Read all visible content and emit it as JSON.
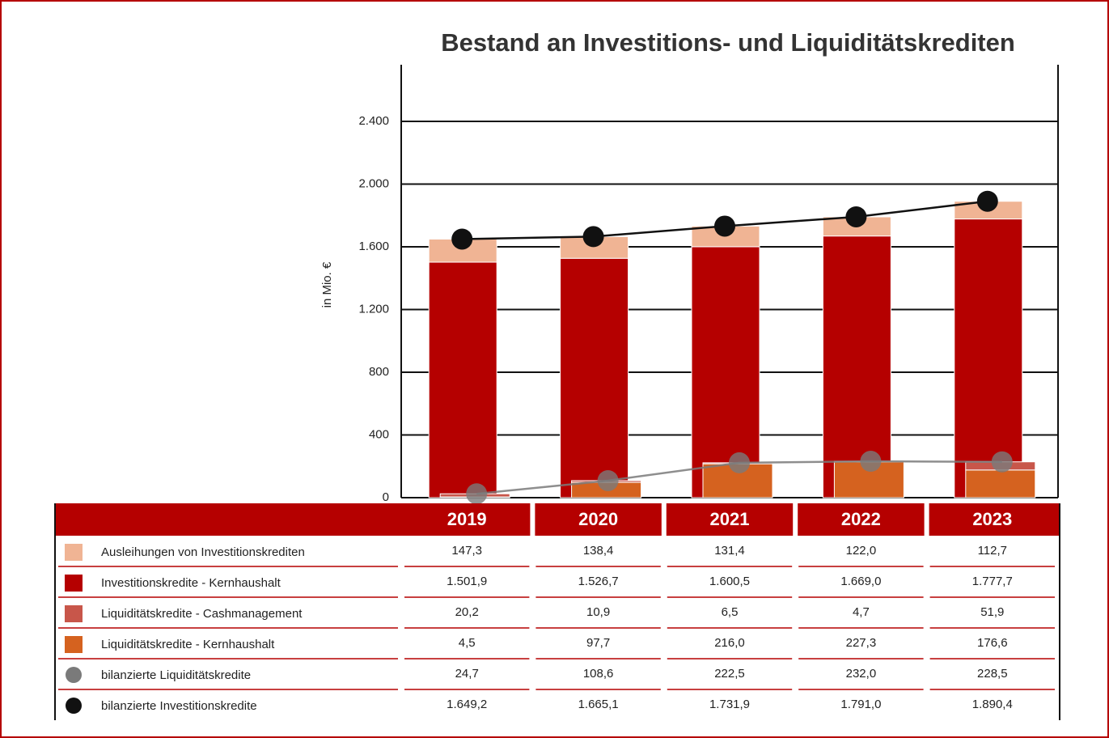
{
  "chart_data": {
    "type": "bar",
    "title": "Bestand an Investitions- und Liquiditätskrediten",
    "y_label": "in Mio. €",
    "categories": [
      "2019",
      "2020",
      "2021",
      "2022",
      "2023"
    ],
    "ylim": [
      0,
      2800
    ],
    "yticks": [
      0,
      400,
      800,
      {
        "value": 1200,
        "label": "1.200"
      },
      {
        "value": 1600,
        "label": "1.600"
      },
      {
        "value": 2000,
        "label": "2.000"
      },
      {
        "value": 2400,
        "label": "2.400"
      }
    ],
    "grid": true,
    "series": [
      {
        "name": "Ausleihungen von Investitionskrediten",
        "color": "#f0b494",
        "type": "bar",
        "stack": "invest",
        "values": [
          147.3,
          138.4,
          131.4,
          122.0,
          112.7
        ],
        "value_labels": [
          "147,3",
          "138,4",
          "131,4",
          "122,0",
          "112,7"
        ]
      },
      {
        "name": "Investitionskredite - Kernhaushalt",
        "color": "#b50000",
        "type": "bar",
        "stack": "invest",
        "values": [
          1501.9,
          1526.7,
          1600.5,
          1669.0,
          1777.7
        ],
        "value_labels": [
          "1.501,9",
          "1.526,7",
          "1.600,5",
          "1.669,0",
          "1.777,7"
        ]
      },
      {
        "name": "Liquiditätskredite - Cashmanagement",
        "color": "#c8564a",
        "type": "bar",
        "stack": "liquid",
        "values": [
          20.2,
          10.9,
          6.5,
          4.7,
          51.9
        ],
        "value_labels": [
          "20,2",
          "10,9",
          "6,5",
          "4,7",
          "51,9"
        ]
      },
      {
        "name": "Liquiditätskredite - Kernhaushalt",
        "color": "#d5621f",
        "type": "bar",
        "stack": "liquid",
        "values": [
          4.5,
          97.7,
          216.0,
          227.3,
          176.6
        ],
        "value_labels": [
          "4,5",
          "97,7",
          "216,0",
          "227,3",
          "176,6"
        ]
      },
      {
        "name": "bilanzierte Liquiditätskredite",
        "color": "#7a7a7a",
        "type": "line",
        "values": [
          24.7,
          108.6,
          222.5,
          232.0,
          228.5
        ],
        "value_labels": [
          "24,7",
          "108,6",
          "222,5",
          "232,0",
          "228,5"
        ]
      },
      {
        "name": "bilanzierte Investitionskredite",
        "color": "#111111",
        "type": "line",
        "values": [
          1649.2,
          1665.1,
          1731.9,
          1791.0,
          1890.4
        ],
        "value_labels": [
          "1.649,2",
          "1.665,1",
          "1.731,9",
          "1.791,0",
          "1.890,4"
        ]
      }
    ]
  }
}
